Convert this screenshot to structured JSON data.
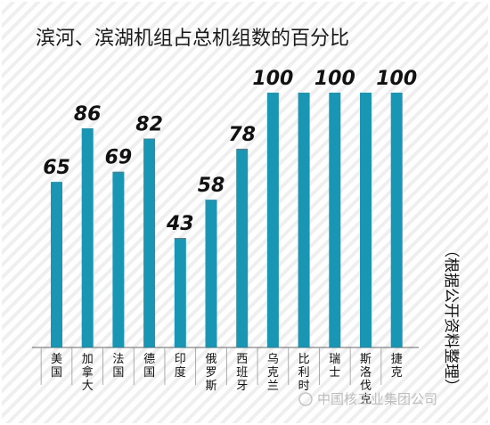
{
  "chart_data": {
    "type": "bar",
    "title": "滨河、滨湖机组占总机组数的百分比",
    "categories": [
      "美国",
      "加拿大",
      "法国",
      "德国",
      "印度",
      "俄罗斯",
      "西班牙",
      "乌克兰",
      "比利时",
      "瑞士",
      "斯洛伐克",
      "捷克"
    ],
    "values": [
      65,
      86,
      69,
      82,
      43,
      58,
      78,
      100,
      100,
      100,
      100,
      100
    ],
    "value_labels": [
      "65",
      "86",
      "69",
      "82",
      "43",
      "58",
      "78",
      "100",
      "",
      "100",
      "",
      "100"
    ],
    "ylim": [
      0,
      100
    ],
    "xlabel": "",
    "ylabel": "",
    "grid": false,
    "bar_color": "#1a96b5",
    "background": "diagonal-stripes",
    "note": "（根据公开资料整理）"
  },
  "watermark": "中国核工业集团公司"
}
